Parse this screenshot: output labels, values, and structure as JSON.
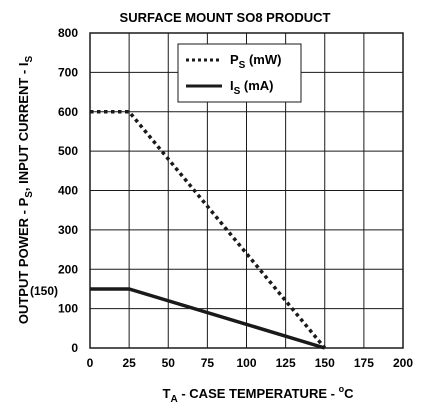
{
  "chart_data": {
    "type": "line",
    "title": "SURFACE MOUNT SO8 PRODUCT",
    "xlabel": {
      "prefix": "T",
      "sub": "A",
      "text": " -  CASE TEMPERATURE - ",
      "sup": "o",
      "unit": "C"
    },
    "ylabel": {
      "text": "OUTPUT POWER  -  P",
      "sub": "S",
      "rest": ", INPUT CURRENT - I",
      "sub2": "S"
    },
    "xlim": [
      0,
      200
    ],
    "ylim": [
      0,
      800
    ],
    "xticks": [
      "0",
      "25",
      "50",
      "75",
      "100",
      "125",
      "150",
      "175",
      "200"
    ],
    "yticks": [
      "0",
      "100",
      "200",
      "300",
      "400",
      "500",
      "600",
      "700",
      "800"
    ],
    "yannotation": "(150)",
    "grid": true,
    "legend_position": "top-right",
    "series": [
      {
        "name": "P",
        "name_sub": "S",
        "name_unit": " (mW)",
        "style": "dotted",
        "x": [
          0,
          25,
          150
        ],
        "y": [
          600,
          600,
          0
        ]
      },
      {
        "name": "I",
        "name_sub": "S",
        "name_unit": " (mA)",
        "style": "solid",
        "x": [
          0,
          25,
          150
        ],
        "y": [
          150,
          150,
          0
        ]
      }
    ],
    "colors": {
      "line": "#1a1a1a",
      "grid": "#1a1a1a",
      "background": "#ffffff"
    }
  }
}
